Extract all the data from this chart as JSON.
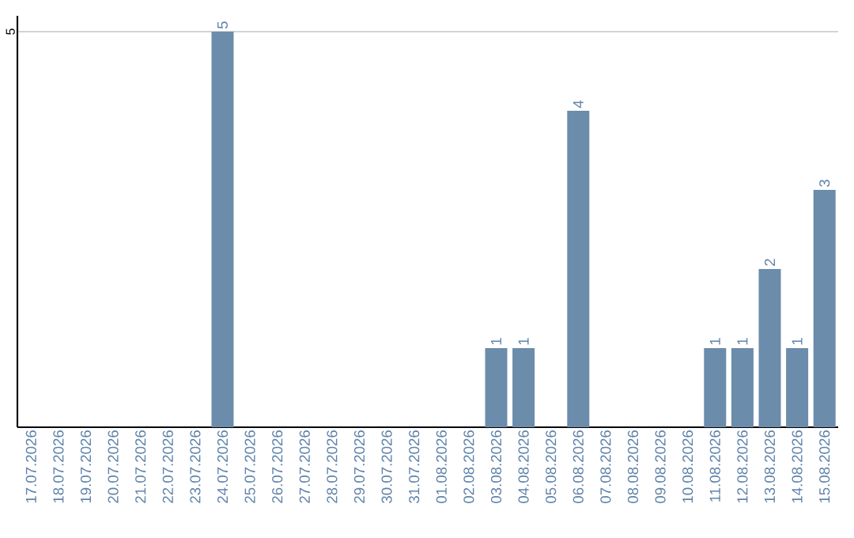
{
  "chart_data": {
    "type": "bar",
    "categories": [
      "17.07.2026",
      "18.07.2026",
      "19.07.2026",
      "20.07.2026",
      "21.07.2026",
      "22.07.2026",
      "23.07.2026",
      "24.07.2026",
      "25.07.2026",
      "26.07.2026",
      "27.07.2026",
      "28.07.2026",
      "29.07.2026",
      "30.07.2026",
      "31.07.2026",
      "01.08.2026",
      "02.08.2026",
      "03.08.2026",
      "04.08.2026",
      "05.08.2026",
      "06.08.2026",
      "07.08.2026",
      "08.08.2026",
      "09.08.2026",
      "10.08.2026",
      "11.08.2026",
      "12.08.2026",
      "13.08.2026",
      "14.08.2026",
      "15.08.2026"
    ],
    "values": [
      0,
      0,
      0,
      0,
      0,
      0,
      0,
      5,
      0,
      0,
      0,
      0,
      0,
      0,
      0,
      0,
      0,
      1,
      1,
      0,
      4,
      0,
      0,
      0,
      0,
      1,
      1,
      2,
      1,
      3
    ],
    "value_labels": [
      null,
      null,
      null,
      null,
      null,
      null,
      null,
      "5",
      null,
      null,
      null,
      null,
      null,
      null,
      null,
      null,
      null,
      "1",
      "1",
      null,
      "4",
      null,
      null,
      null,
      null,
      "1",
      "1",
      "2",
      "1",
      "3"
    ],
    "color": "#6b8cab",
    "ylim": [
      0,
      5.2
    ],
    "yticks": [
      5
    ],
    "grid": "y"
  }
}
